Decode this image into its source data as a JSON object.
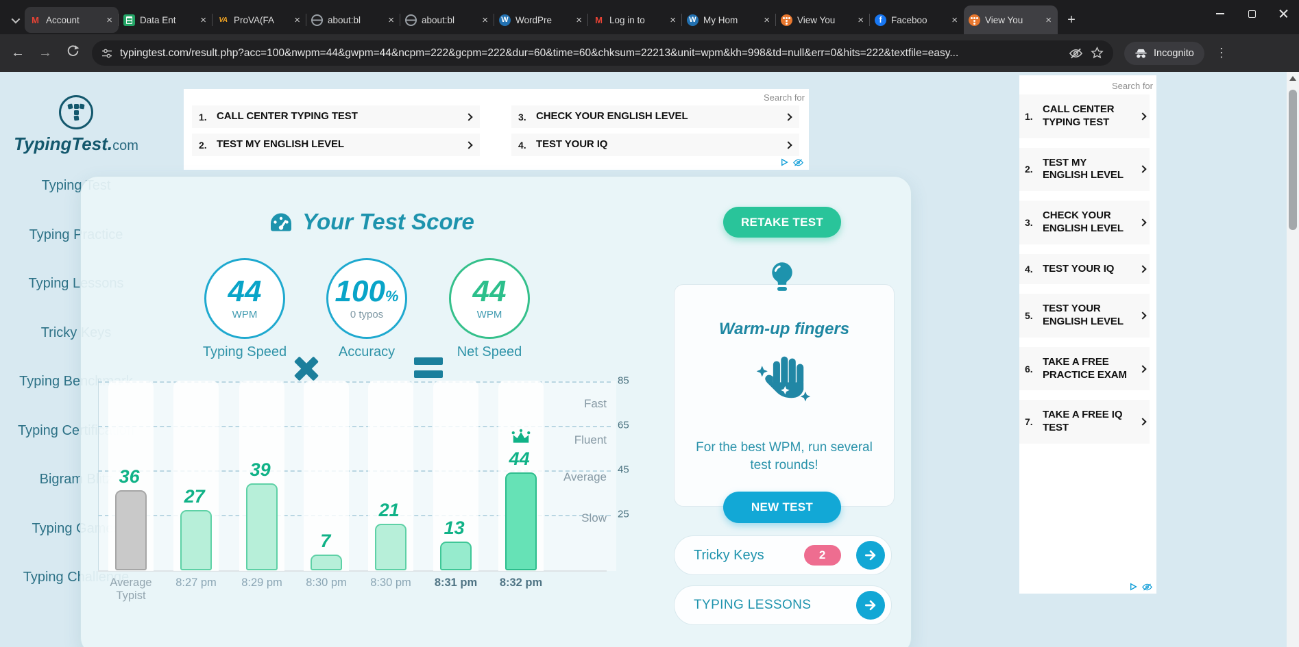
{
  "browser": {
    "tabs": [
      {
        "title": "Account",
        "icon": "gmail"
      },
      {
        "title": "Data Ent",
        "icon": "sheets"
      },
      {
        "title": "ProVA(FA",
        "icon": "prova"
      },
      {
        "title": "about:bl",
        "icon": "globe"
      },
      {
        "title": "about:bl",
        "icon": "globe"
      },
      {
        "title": "WordPre",
        "icon": "wordpress"
      },
      {
        "title": "Log in to",
        "icon": "gmail"
      },
      {
        "title": "My Hom",
        "icon": "wordpress"
      },
      {
        "title": "View You",
        "icon": "typingtest"
      },
      {
        "title": "Faceboo",
        "icon": "facebook"
      },
      {
        "title": "View You",
        "icon": "typingtest"
      }
    ],
    "active_tab": 10,
    "icon_glyphs": {
      "gmail": "M",
      "sheets": "",
      "prova": "VA",
      "globe": "",
      "wordpress": "W",
      "typingtest": "",
      "facebook": "f"
    },
    "url": "typingtest.com/result.php?acc=100&nwpm=44&gwpm=44&ncpm=222&gcpm=222&dur=60&time=60&chksum=22213&unit=wpm&kh=998&td=null&err=0&hits=222&textfile=easy...",
    "incognito": "Incognito"
  },
  "sidebar": {
    "site": "TypingTest.",
    "tld": "com",
    "items": [
      "Typing Test",
      "Typing Practice",
      "Typing Lessons",
      "Tricky Keys",
      "Typing Benchmark",
      "Typing Certification",
      "Bigram Blitz",
      "Typing Games",
      "Typing Challenge"
    ]
  },
  "ads": {
    "top": {
      "search_for": "Search for",
      "items": [
        {
          "n": "1.",
          "label": "CALL CENTER TYPING TEST"
        },
        {
          "n": "2.",
          "label": "TEST MY ENGLISH LEVEL"
        },
        {
          "n": "3.",
          "label": "CHECK YOUR ENGLISH LEVEL"
        },
        {
          "n": "4.",
          "label": "TEST YOUR IQ"
        }
      ]
    },
    "side": {
      "search_for": "Search for",
      "items": [
        {
          "n": "1.",
          "label": "CALL CENTER TYPING TEST"
        },
        {
          "n": "2.",
          "label": "TEST MY ENGLISH LEVEL"
        },
        {
          "n": "3.",
          "label": "CHECK YOUR ENGLISH LEVEL"
        },
        {
          "n": "4.",
          "label": "TEST YOUR IQ"
        },
        {
          "n": "5.",
          "label": "TEST YOUR ENGLISH LEVEL"
        },
        {
          "n": "6.",
          "label": "TAKE A FREE PRACTICE EXAM"
        },
        {
          "n": "7.",
          "label": "TAKE A FREE IQ TEST"
        }
      ]
    }
  },
  "score": {
    "heading": "Your Test Score",
    "retake": "RETAKE TEST",
    "operators": [
      "×",
      "="
    ],
    "circles": [
      {
        "value": "44",
        "suffix": "",
        "sub": "WPM",
        "label": "Typing Speed",
        "theme": "blue"
      },
      {
        "value": "100",
        "suffix": "%",
        "sub": "0 typos",
        "label": "Accuracy",
        "theme": "blue"
      },
      {
        "value": "44",
        "suffix": "",
        "sub": "WPM",
        "label": "Net Speed",
        "theme": "green"
      }
    ]
  },
  "chart_data": {
    "type": "bar",
    "categories": [
      "Average Typist",
      "8:27 pm",
      "8:29 pm",
      "8:30 pm",
      "8:30 pm",
      "8:31 pm",
      "8:32 pm"
    ],
    "values": [
      36,
      27,
      39,
      7,
      21,
      13,
      44
    ],
    "bar_styles": [
      "gray",
      "light",
      "light",
      "light",
      "light",
      "medium",
      "dark"
    ],
    "crown_index": 6,
    "right_ticks": [
      85,
      65,
      45,
      25
    ],
    "level_labels": [
      "Fast",
      "Fluent",
      "Average",
      "Slow"
    ],
    "ylim": [
      0,
      88
    ],
    "unit": "wpm",
    "grid": "dashed-horizontal",
    "colors": {
      "gray": {
        "fill": "#c9c9c9",
        "stroke": "#a6a6a6"
      },
      "light": {
        "fill": "#b7efd9",
        "stroke": "#5ed1a6"
      },
      "medium": {
        "fill": "#96ebcd",
        "stroke": "#3fc797"
      },
      "dark": {
        "fill": "#66e2b6",
        "stroke": "#2dbd8d"
      },
      "value_labels": "#10b287"
    }
  },
  "warmup": {
    "title": "Warm-up fingers",
    "body": "For the best WPM, run several test rounds!",
    "new_test": "NEW TEST"
  },
  "quick_links": [
    {
      "label": "Tricky Keys",
      "badge": "2"
    },
    {
      "label": "TYPING LESSONS"
    }
  ],
  "theme_colors": {
    "page_bg": "#d8e9f1",
    "card_bg": "#eaf5f8",
    "teal": "#1d93ad",
    "green_btn": "#29c49a",
    "blue_btn": "#12a8d6",
    "pink_badge": "#ee6d90",
    "bar_green": "#66e2b6",
    "dark_navy_text": "#14586d"
  }
}
